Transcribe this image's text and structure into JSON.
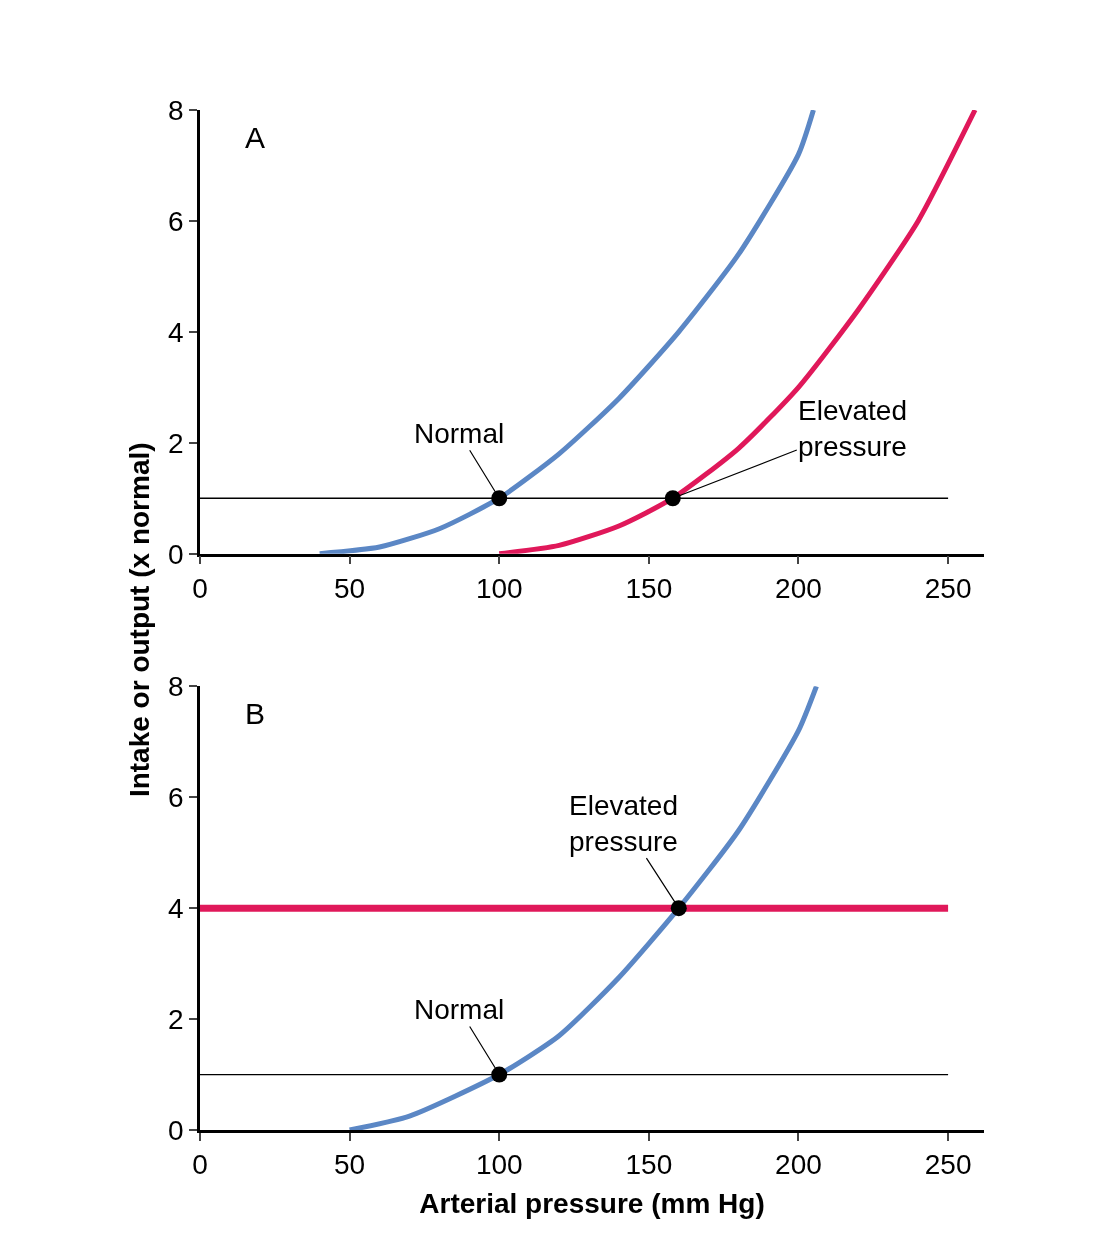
{
  "chart_data": [
    {
      "type": "line",
      "ylabel": "Intake or output (x normal)",
      "xlim": [
        0,
        262
      ],
      "ylim": [
        0,
        8
      ],
      "xticks": [
        0,
        50,
        100,
        150,
        200,
        250
      ],
      "yticks": [
        0,
        2,
        4,
        6,
        8
      ],
      "annotations": [
        "A",
        {
          "text": "Normal",
          "x": 100,
          "y": 1
        },
        {
          "text": "Elevated pressure",
          "x": 158,
          "y": 1
        }
      ],
      "ref_lines": [
        {
          "axis": "y",
          "value": 1,
          "color": "#000000"
        }
      ],
      "series": [
        {
          "color": "#5b87c5",
          "x": [
            40,
            60,
            80,
            100,
            120,
            140,
            160,
            180,
            200,
            205
          ],
          "values": [
            0,
            0.12,
            0.45,
            1.0,
            1.8,
            2.8,
            4.0,
            5.4,
            7.2,
            8.0
          ]
        },
        {
          "color": "#e0185a",
          "x": [
            100,
            120,
            140,
            158,
            180,
            200,
            220,
            240,
            259
          ],
          "values": [
            0,
            0.15,
            0.5,
            1.0,
            1.9,
            3.0,
            4.4,
            6.0,
            8.0
          ]
        },
        {
          "type": "scatter",
          "marker": "circle",
          "color": "#000000",
          "x": [
            100,
            158
          ],
          "values": [
            1,
            1
          ]
        }
      ]
    },
    {
      "type": "line",
      "xlabel": "Arterial pressure (mm Hg)",
      "xlim": [
        0,
        262
      ],
      "ylim": [
        0,
        8
      ],
      "xticks": [
        0,
        50,
        100,
        150,
        200,
        250
      ],
      "yticks": [
        0,
        2,
        4,
        6,
        8
      ],
      "annotations": [
        "B",
        {
          "text": "Elevated pressure",
          "x": 160,
          "y": 4
        },
        {
          "text": "Normal",
          "x": 100,
          "y": 1
        }
      ],
      "ref_lines": [
        {
          "axis": "y",
          "value": 1,
          "color": "#000000"
        }
      ],
      "series": [
        {
          "color": "#5b87c5",
          "x": [
            50,
            70,
            100,
            120,
            140,
            160,
            180,
            200,
            206
          ],
          "values": [
            0,
            0.25,
            1.0,
            1.7,
            2.75,
            4.0,
            5.4,
            7.2,
            8.0
          ]
        },
        {
          "color": "#e0185a",
          "x": [
            0,
            250
          ],
          "values": [
            4,
            4
          ]
        },
        {
          "type": "scatter",
          "marker": "circle",
          "color": "#000000",
          "x": [
            100,
            160
          ],
          "values": [
            1,
            4
          ]
        }
      ]
    }
  ]
}
